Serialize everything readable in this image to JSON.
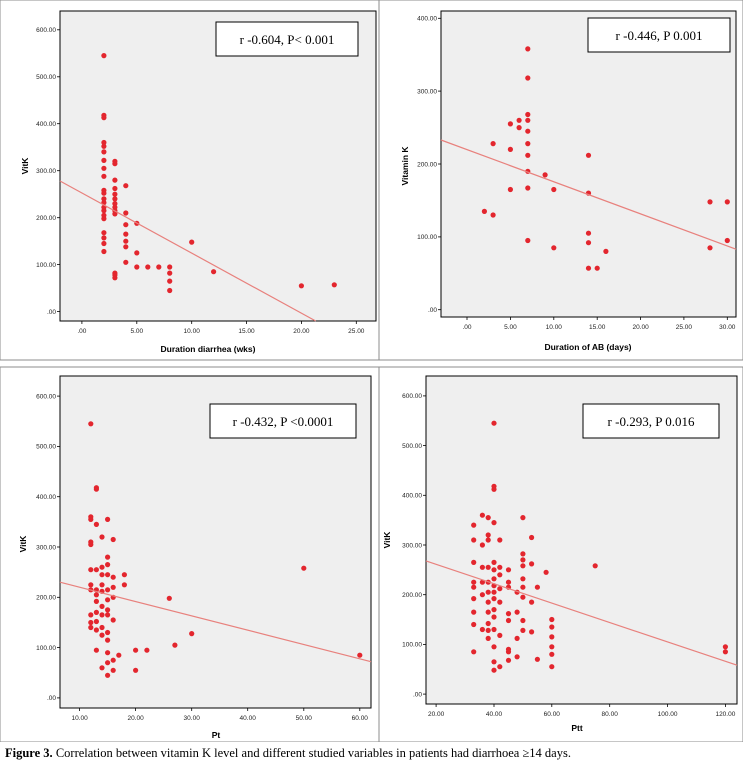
{
  "caption": {
    "label": "Figure 3.",
    "text": " Correlation between vitamin K level and different studied variables in patients had diarrhoea ≥14 days."
  },
  "style": {
    "frame_bg": "#ffffff",
    "plot_bg": "#efefef",
    "point_color": "#e3262e",
    "line_color": "#e8817d",
    "frame_border": "#8c8c8c"
  },
  "chart_data": [
    {
      "type": "scatter",
      "id": "tl",
      "xlabel": "Duration diarrhea (wks)",
      "ylabel": "VitK",
      "xlim": [
        -2.0,
        26.8
      ],
      "ylim": [
        -20,
        640
      ],
      "xticks": [
        0,
        5,
        10,
        15,
        20,
        25
      ],
      "xtick_labels": [
        ".00",
        "5.00",
        "10.00",
        "15.00",
        "20.00",
        "25.00"
      ],
      "yticks": [
        0,
        100,
        200,
        300,
        400,
        500,
        600
      ],
      "ytick_labels": [
        ".00",
        "100.00",
        "200.00",
        "300.00",
        "400.00",
        "500.00",
        "600.00"
      ],
      "annotation": "r -0.604, P< 0.001",
      "fit_line": [
        [
          -2.0,
          278
        ],
        [
          21.3,
          -20
        ]
      ],
      "points": [
        [
          2,
          545
        ],
        [
          2,
          418
        ],
        [
          2,
          413
        ],
        [
          2,
          360
        ],
        [
          2,
          352
        ],
        [
          2,
          340
        ],
        [
          2,
          322
        ],
        [
          2,
          305
        ],
        [
          2,
          288
        ],
        [
          2,
          258
        ],
        [
          2,
          252
        ],
        [
          2,
          240
        ],
        [
          2,
          232
        ],
        [
          2,
          222
        ],
        [
          2,
          215
        ],
        [
          2,
          205
        ],
        [
          2,
          198
        ],
        [
          2,
          168
        ],
        [
          2,
          157
        ],
        [
          2,
          145
        ],
        [
          2,
          128
        ],
        [
          3,
          320
        ],
        [
          3,
          315
        ],
        [
          3,
          280
        ],
        [
          3,
          262
        ],
        [
          3,
          250
        ],
        [
          3,
          240
        ],
        [
          3,
          230
        ],
        [
          3,
          222
        ],
        [
          3,
          215
        ],
        [
          3,
          208
        ],
        [
          3,
          82
        ],
        [
          3,
          78
        ],
        [
          3,
          72
        ],
        [
          4,
          268
        ],
        [
          4,
          210
        ],
        [
          4,
          185
        ],
        [
          4,
          165
        ],
        [
          4,
          150
        ],
        [
          4,
          138
        ],
        [
          4,
          105
        ],
        [
          5,
          188
        ],
        [
          5,
          125
        ],
        [
          5,
          95
        ],
        [
          6,
          95
        ],
        [
          7,
          95
        ],
        [
          8,
          95
        ],
        [
          8,
          82
        ],
        [
          8,
          65
        ],
        [
          8,
          45
        ],
        [
          10,
          148
        ],
        [
          12,
          85
        ],
        [
          20,
          55
        ],
        [
          23,
          57
        ]
      ]
    },
    {
      "type": "scatter",
      "id": "tr",
      "xlabel": "Duration of AB (days)",
      "ylabel": "Vitamin K",
      "xlim": [
        -3.0,
        31.0
      ],
      "ylim": [
        -10,
        410
      ],
      "xticks": [
        0,
        5,
        10,
        15,
        20,
        25,
        30
      ],
      "xtick_labels": [
        ".00",
        "5.00",
        "10.00",
        "15.00",
        "20.00",
        "25.00",
        "30.00"
      ],
      "yticks": [
        0,
        100,
        200,
        300,
        400
      ],
      "ytick_labels": [
        ".00",
        "100.00",
        "200.00",
        "300.00",
        "400.00"
      ],
      "annotation": "r -0.446, P 0.001",
      "fit_line": [
        [
          -3.0,
          233
        ],
        [
          31.0,
          83
        ]
      ],
      "points": [
        [
          2,
          135
        ],
        [
          3,
          228
        ],
        [
          3,
          130
        ],
        [
          5,
          255
        ],
        [
          5,
          220
        ],
        [
          5,
          165
        ],
        [
          6,
          260
        ],
        [
          6,
          250
        ],
        [
          7,
          358
        ],
        [
          7,
          318
        ],
        [
          7,
          268
        ],
        [
          7,
          260
        ],
        [
          7,
          245
        ],
        [
          7,
          228
        ],
        [
          7,
          212
        ],
        [
          7,
          190
        ],
        [
          7,
          167
        ],
        [
          7,
          95
        ],
        [
          9,
          185
        ],
        [
          10,
          165
        ],
        [
          10,
          85
        ],
        [
          14,
          212
        ],
        [
          14,
          160
        ],
        [
          14,
          105
        ],
        [
          14,
          92
        ],
        [
          14,
          57
        ],
        [
          15,
          57
        ],
        [
          16,
          80
        ],
        [
          28,
          148
        ],
        [
          28,
          85
        ],
        [
          30,
          148
        ],
        [
          30,
          95
        ]
      ]
    },
    {
      "type": "scatter",
      "id": "bl",
      "xlabel": "Pt",
      "ylabel": "VitK",
      "xlim": [
        6.5,
        62.0
      ],
      "ylim": [
        -20,
        640
      ],
      "xticks": [
        10,
        20,
        30,
        40,
        50,
        60
      ],
      "xtick_labels": [
        "10.00",
        "20.00",
        "30.00",
        "40.00",
        "50.00",
        "60.00"
      ],
      "yticks": [
        0,
        100,
        200,
        300,
        400,
        500,
        600
      ],
      "ytick_labels": [
        ".00",
        "100.00",
        "200.00",
        "300.00",
        "400.00",
        "500.00",
        "600.00"
      ],
      "annotation": "r -0.432, P <0.0001",
      "fit_line": [
        [
          6.5,
          230
        ],
        [
          62.0,
          72
        ]
      ],
      "points": [
        [
          12,
          545
        ],
        [
          12,
          360
        ],
        [
          12,
          355
        ],
        [
          12,
          310
        ],
        [
          12,
          305
        ],
        [
          12,
          255
        ],
        [
          12,
          225
        ],
        [
          12,
          215
        ],
        [
          12,
          165
        ],
        [
          12,
          150
        ],
        [
          12,
          140
        ],
        [
          13,
          418
        ],
        [
          13,
          415
        ],
        [
          13,
          345
        ],
        [
          13,
          255
        ],
        [
          13,
          215
        ],
        [
          13,
          205
        ],
        [
          13,
          192
        ],
        [
          13,
          170
        ],
        [
          13,
          152
        ],
        [
          13,
          135
        ],
        [
          13,
          95
        ],
        [
          14,
          320
        ],
        [
          14,
          260
        ],
        [
          14,
          245
        ],
        [
          14,
          225
        ],
        [
          14,
          212
        ],
        [
          14,
          182
        ],
        [
          14,
          165
        ],
        [
          14,
          140
        ],
        [
          14,
          125
        ],
        [
          14,
          60
        ],
        [
          15,
          355
        ],
        [
          15,
          280
        ],
        [
          15,
          265
        ],
        [
          15,
          245
        ],
        [
          15,
          215
        ],
        [
          15,
          195
        ],
        [
          15,
          175
        ],
        [
          15,
          165
        ],
        [
          15,
          130
        ],
        [
          15,
          115
        ],
        [
          15,
          90
        ],
        [
          15,
          70
        ],
        [
          15,
          45
        ],
        [
          16,
          315
        ],
        [
          16,
          240
        ],
        [
          16,
          220
        ],
        [
          16,
          200
        ],
        [
          16,
          155
        ],
        [
          16,
          75
        ],
        [
          16,
          55
        ],
        [
          17,
          85
        ],
        [
          18,
          245
        ],
        [
          18,
          225
        ],
        [
          20,
          95
        ],
        [
          20,
          55
        ],
        [
          22,
          95
        ],
        [
          26,
          198
        ],
        [
          27,
          105
        ],
        [
          30,
          128
        ],
        [
          50,
          258
        ],
        [
          60,
          85
        ]
      ]
    },
    {
      "type": "scatter",
      "id": "br",
      "xlabel": "Ptt",
      "ylabel": "VitK",
      "xlim": [
        16.5,
        124.0
      ],
      "ylim": [
        -20,
        640
      ],
      "xticks": [
        20,
        40,
        60,
        80,
        100,
        120
      ],
      "xtick_labels": [
        "20.00",
        "40.00",
        "60.00",
        "80.00",
        "100.00",
        "120.00"
      ],
      "yticks": [
        0,
        100,
        200,
        300,
        400,
        500,
        600
      ],
      "ytick_labels": [
        ".00",
        "100.00",
        "200.00",
        "300.00",
        "400.00",
        "500.00",
        "600.00"
      ],
      "annotation": "r -0.293, P 0.016",
      "fit_line": [
        [
          16.5,
          268
        ],
        [
          124.0,
          58
        ]
      ],
      "points": [
        [
          33,
          340
        ],
        [
          33,
          310
        ],
        [
          33,
          265
        ],
        [
          33,
          225
        ],
        [
          33,
          215
        ],
        [
          33,
          192
        ],
        [
          33,
          165
        ],
        [
          33,
          140
        ],
        [
          33,
          85
        ],
        [
          36,
          360
        ],
        [
          36,
          300
        ],
        [
          36,
          255
        ],
        [
          36,
          225
        ],
        [
          36,
          200
        ],
        [
          36,
          130
        ],
        [
          38,
          355
        ],
        [
          38,
          320
        ],
        [
          38,
          310
        ],
        [
          38,
          255
        ],
        [
          38,
          225
        ],
        [
          38,
          205
        ],
        [
          38,
          185
        ],
        [
          38,
          165
        ],
        [
          38,
          142
        ],
        [
          38,
          128
        ],
        [
          38,
          112
        ],
        [
          40,
          545
        ],
        [
          40,
          418
        ],
        [
          40,
          412
        ],
        [
          40,
          345
        ],
        [
          40,
          265
        ],
        [
          40,
          250
        ],
        [
          40,
          232
        ],
        [
          40,
          218
        ],
        [
          40,
          205
        ],
        [
          40,
          192
        ],
        [
          40,
          170
        ],
        [
          40,
          155
        ],
        [
          40,
          130
        ],
        [
          40,
          95
        ],
        [
          40,
          65
        ],
        [
          40,
          48
        ],
        [
          42,
          310
        ],
        [
          42,
          255
        ],
        [
          42,
          240
        ],
        [
          42,
          212
        ],
        [
          42,
          185
        ],
        [
          42,
          118
        ],
        [
          42,
          55
        ],
        [
          45,
          250
        ],
        [
          45,
          225
        ],
        [
          45,
          215
        ],
        [
          45,
          162
        ],
        [
          45,
          148
        ],
        [
          45,
          90
        ],
        [
          45,
          85
        ],
        [
          45,
          68
        ],
        [
          48,
          205
        ],
        [
          48,
          165
        ],
        [
          48,
          112
        ],
        [
          48,
          75
        ],
        [
          50,
          355
        ],
        [
          50,
          282
        ],
        [
          50,
          270
        ],
        [
          50,
          258
        ],
        [
          50,
          232
        ],
        [
          50,
          215
        ],
        [
          50,
          195
        ],
        [
          50,
          148
        ],
        [
          50,
          128
        ],
        [
          53,
          315
        ],
        [
          53,
          262
        ],
        [
          53,
          185
        ],
        [
          53,
          125
        ],
        [
          55,
          215
        ],
        [
          55,
          70
        ],
        [
          58,
          245
        ],
        [
          60,
          150
        ],
        [
          60,
          135
        ],
        [
          60,
          115
        ],
        [
          60,
          95
        ],
        [
          60,
          80
        ],
        [
          60,
          55
        ],
        [
          75,
          258
        ],
        [
          120,
          95
        ],
        [
          120,
          85
        ]
      ]
    }
  ]
}
